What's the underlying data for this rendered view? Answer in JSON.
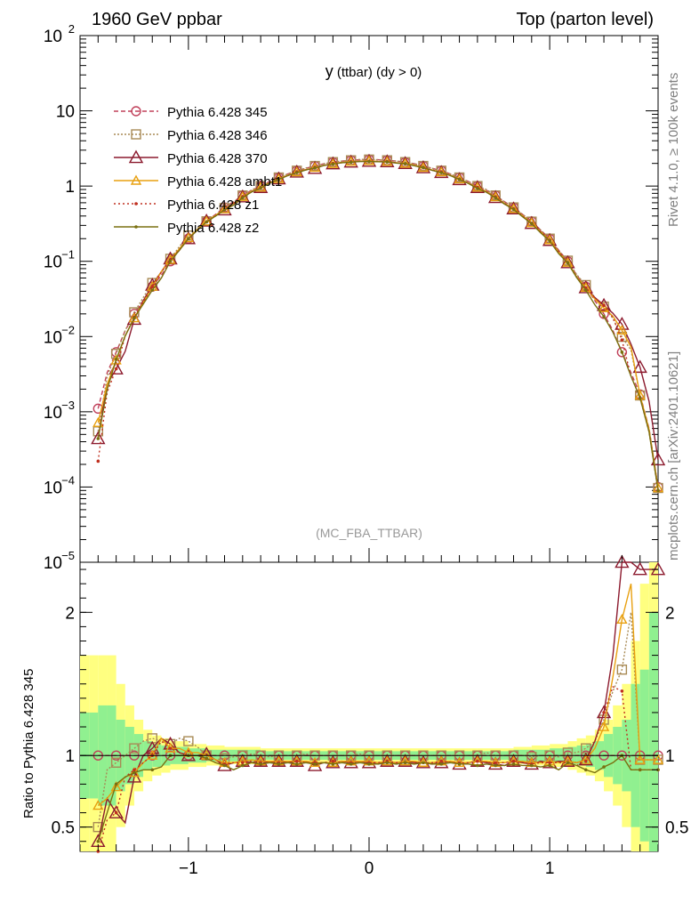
{
  "header": {
    "left": "1960 GeV ppbar",
    "right": "Top (parton level)"
  },
  "side_labels": {
    "rivet": "Rivet 4.1.0, ≥ 100k events",
    "mcplots": "mcplots.cern.ch [arXiv:2401.10621]"
  },
  "chart_data": {
    "type": "line",
    "title_main": "y",
    "title_rest": " (ttbar) (dy > 0)",
    "analysis_label": "(MC_FBA_TTBAR)",
    "xlim": [
      -1.6,
      1.6
    ],
    "ylim_log": [
      1e-05,
      100
    ],
    "ratio_ylim": [
      0.33,
      2.35
    ],
    "ratio_ylabel": "Ratio to Pythia 6.428 345",
    "x_ticks": [
      "−1",
      "0",
      "1"
    ],
    "x_tick_values": [
      -1,
      0,
      1
    ],
    "y_ticks": [
      {
        "value": 100,
        "base": "10",
        "exp": "2"
      },
      {
        "value": 10,
        "base": "10",
        "exp": ""
      },
      {
        "value": 1,
        "base": "1",
        "exp": ""
      },
      {
        "value": 0.1,
        "base": "10",
        "exp": "−1"
      },
      {
        "value": 0.01,
        "base": "10",
        "exp": "−2"
      },
      {
        "value": 0.001,
        "base": "10",
        "exp": "−3"
      },
      {
        "value": 0.0001,
        "base": "10",
        "exp": "−4"
      },
      {
        "value": 1e-05,
        "base": "10",
        "exp": "−5"
      }
    ],
    "ratio_ticks": [
      {
        "value": 0.5,
        "label": "0.5"
      },
      {
        "value": 1,
        "label": "1"
      },
      {
        "value": 2,
        "label": "2"
      }
    ],
    "x": [
      -1.5,
      -1.45,
      -1.4,
      -1.35,
      -1.3,
      -1.25,
      -1.2,
      -1.15,
      -1.1,
      -1.05,
      -1.0,
      -0.95,
      -0.9,
      -0.85,
      -0.8,
      -0.75,
      -0.7,
      -0.65,
      -0.6,
      -0.55,
      -0.5,
      -0.45,
      -0.4,
      -0.35,
      -0.3,
      -0.25,
      -0.2,
      -0.15,
      -0.1,
      -0.05,
      0.0,
      0.05,
      0.1,
      0.15,
      0.2,
      0.25,
      0.3,
      0.35,
      0.4,
      0.45,
      0.5,
      0.55,
      0.6,
      0.65,
      0.7,
      0.75,
      0.8,
      0.85,
      0.9,
      0.95,
      1.0,
      1.05,
      1.1,
      1.15,
      1.2,
      1.25,
      1.3,
      1.35,
      1.4,
      1.45,
      1.5,
      1.55,
      1.6
    ],
    "reference": [
      0.0011,
      0.0033,
      0.0062,
      0.012,
      0.02,
      0.03,
      0.046,
      0.065,
      0.1,
      0.14,
      0.2,
      0.26,
      0.34,
      0.42,
      0.52,
      0.62,
      0.75,
      0.88,
      1.0,
      1.15,
      1.3,
      1.45,
      1.6,
      1.72,
      1.85,
      1.98,
      2.08,
      2.15,
      2.2,
      2.24,
      2.25,
      2.24,
      2.2,
      2.15,
      2.08,
      1.98,
      1.85,
      1.72,
      1.6,
      1.45,
      1.3,
      1.15,
      1.0,
      0.88,
      0.75,
      0.62,
      0.52,
      0.42,
      0.34,
      0.26,
      0.2,
      0.14,
      0.1,
      0.065,
      0.046,
      0.03,
      0.02,
      0.012,
      0.0062,
      0.0033,
      0.0017,
      0.0006,
      0.0001
    ],
    "series": [
      {
        "name": "Pythia 6.428 345",
        "color": "#c0405a",
        "dash": "5,3",
        "marker": "circle",
        "fill_band": true,
        "ratio": [
          1.0,
          1.0,
          1.0,
          1.0,
          1.0,
          1.0,
          1.0,
          1.0,
          1.0,
          1.0,
          1.0,
          1.0,
          1.0,
          1.0,
          1.0,
          1.0,
          1.0,
          1.0,
          1.0,
          1.0,
          1.0,
          1.0,
          1.0,
          1.0,
          1.0,
          1.0,
          1.0,
          1.0,
          1.0,
          1.0,
          1.0,
          1.0,
          1.0,
          1.0,
          1.0,
          1.0,
          1.0,
          1.0,
          1.0,
          1.0,
          1.0,
          1.0,
          1.0,
          1.0,
          1.0,
          1.0,
          1.0,
          1.0,
          1.0,
          1.0,
          1.0,
          1.0,
          1.0,
          1.0,
          1.0,
          1.0,
          1.0,
          1.0,
          1.0,
          1.0,
          1.0,
          1.0,
          1.0
        ]
      },
      {
        "name": "Pythia 6.428 346",
        "color": "#a88a55",
        "dash": "2,2",
        "marker": "square",
        "ratio": [
          0.5,
          0.9,
          0.95,
          1.0,
          1.05,
          1.1,
          1.12,
          1.1,
          1.08,
          1.12,
          1.1,
          1.06,
          1.0,
          0.97,
          0.98,
          0.99,
          1.0,
          1.01,
          1.0,
          0.99,
          1.0,
          1.0,
          1.0,
          1.01,
          1.0,
          1.0,
          1.0,
          1.0,
          1.0,
          1.01,
          1.0,
          1.0,
          1.0,
          1.0,
          1.0,
          1.0,
          1.0,
          1.0,
          1.0,
          1.0,
          1.0,
          1.0,
          1.0,
          1.02,
          1.0,
          1.0,
          1.0,
          1.0,
          0.99,
          1.0,
          1.0,
          0.99,
          1.02,
          1.02,
          1.05,
          1.1,
          1.25,
          1.45,
          1.6,
          2.0,
          0.97,
          0.97,
          0.97
        ]
      },
      {
        "name": "Pythia 6.428 370",
        "color": "#8c1a2e",
        "dash": "",
        "marker": "triangle",
        "ratio": [
          0.4,
          0.7,
          0.6,
          0.53,
          0.85,
          1.0,
          1.05,
          1.12,
          1.08,
          1.02,
          1.0,
          1.0,
          1.01,
          0.97,
          0.93,
          0.95,
          0.96,
          0.95,
          0.96,
          0.95,
          0.96,
          0.95,
          0.96,
          0.96,
          0.93,
          0.95,
          0.95,
          0.96,
          0.95,
          0.95,
          0.95,
          0.94,
          0.96,
          0.95,
          0.96,
          0.95,
          0.95,
          0.94,
          0.95,
          0.96,
          0.94,
          0.95,
          0.96,
          0.95,
          0.94,
          0.93,
          0.96,
          0.95,
          0.94,
          0.96,
          0.95,
          0.96,
          0.96,
          0.95,
          0.97,
          1.1,
          1.3,
          1.7,
          2.35,
          2.4,
          2.3,
          2.3,
          2.3
        ]
      },
      {
        "name": "Pythia 6.428 ambt1",
        "color": "#e8a010",
        "dash": "",
        "marker": "open-triangle",
        "ratio": [
          0.65,
          0.7,
          0.78,
          0.85,
          0.88,
          0.95,
          1.0,
          1.12,
          1.05,
          1.05,
          1.02,
          1.02,
          1.0,
          0.97,
          0.95,
          0.95,
          0.96,
          0.97,
          0.96,
          0.96,
          0.96,
          0.96,
          0.96,
          0.96,
          0.95,
          0.95,
          0.95,
          0.96,
          0.96,
          0.96,
          0.96,
          0.95,
          0.96,
          0.95,
          0.96,
          0.96,
          0.95,
          0.95,
          0.96,
          0.96,
          0.95,
          0.95,
          0.96,
          0.96,
          0.95,
          0.95,
          0.96,
          0.96,
          0.95,
          0.95,
          0.96,
          0.95,
          0.96,
          0.95,
          0.97,
          1.05,
          1.2,
          1.55,
          1.95,
          2.2,
          0.97,
          0.97,
          0.97
        ]
      },
      {
        "name": "Pythia 6.428 z1",
        "color": "#c03020",
        "dash": "2,3",
        "marker": "dot",
        "ratio": [
          0.2,
          0.55,
          0.6,
          0.85,
          0.9,
          0.95,
          1.0,
          1.1,
          1.05,
          1.02,
          1.0,
          1.0,
          0.98,
          0.95,
          0.94,
          0.95,
          0.95,
          0.96,
          0.95,
          0.95,
          0.95,
          0.95,
          0.96,
          0.95,
          0.95,
          0.95,
          0.96,
          0.95,
          0.95,
          0.95,
          0.95,
          0.95,
          0.96,
          0.95,
          0.95,
          0.95,
          0.95,
          0.95,
          0.96,
          0.95,
          0.95,
          0.95,
          0.96,
          0.95,
          0.95,
          0.95,
          0.96,
          0.95,
          0.94,
          0.95,
          0.95,
          0.95,
          0.95,
          0.93,
          0.96,
          1.1,
          1.3,
          1.48,
          1.45,
          0.9,
          0.9,
          0.9,
          0.9
        ]
      },
      {
        "name": "Pythia 6.428 z2",
        "color": "#7a7010",
        "dash": "",
        "marker": "dot",
        "ratio": [
          0.4,
          0.6,
          0.8,
          0.85,
          0.88,
          0.9,
          0.9,
          0.92,
          1.0,
          1.0,
          1.0,
          1.0,
          0.98,
          0.95,
          0.93,
          0.9,
          0.93,
          0.95,
          0.94,
          0.95,
          0.94,
          0.95,
          0.94,
          0.95,
          0.94,
          0.95,
          0.94,
          0.95,
          0.94,
          0.95,
          0.94,
          0.94,
          0.95,
          0.94,
          0.95,
          0.94,
          0.95,
          0.94,
          0.94,
          0.95,
          0.94,
          0.94,
          0.93,
          0.94,
          0.93,
          0.93,
          0.94,
          0.93,
          0.93,
          0.92,
          0.93,
          0.9,
          0.95,
          0.93,
          0.9,
          0.88,
          0.92,
          0.95,
          1.0,
          0.9,
          0.9,
          0.9,
          0.9
        ]
      }
    ],
    "band_ratio_x": [
      -1.6,
      -1.55,
      -1.5,
      -1.45,
      -1.4,
      -1.35,
      -1.3,
      -1.25,
      -1.2,
      -1.15,
      -1.1,
      -1.0,
      -0.9,
      -0.8,
      -0.6,
      0.6,
      0.8,
      0.9,
      1.0,
      1.1,
      1.15,
      1.2,
      1.25,
      1.3,
      1.35,
      1.4,
      1.45,
      1.5,
      1.55,
      1.6
    ],
    "band_green": [
      0.3,
      0.3,
      0.35,
      0.35,
      0.25,
      0.2,
      0.15,
      0.1,
      0.08,
      0.07,
      0.06,
      0.05,
      0.04,
      0.04,
      0.03,
      0.03,
      0.04,
      0.04,
      0.05,
      0.06,
      0.07,
      0.08,
      0.1,
      0.15,
      0.2,
      0.25,
      0.5,
      0.6,
      1.0,
      1.0
    ],
    "band_yellow": [
      0.7,
      0.7,
      0.7,
      0.7,
      0.5,
      0.35,
      0.25,
      0.18,
      0.14,
      0.12,
      0.1,
      0.08,
      0.07,
      0.06,
      0.05,
      0.05,
      0.06,
      0.07,
      0.08,
      0.1,
      0.12,
      0.14,
      0.18,
      0.25,
      0.35,
      0.5,
      0.8,
      1.2,
      1.6,
      1.6
    ]
  }
}
